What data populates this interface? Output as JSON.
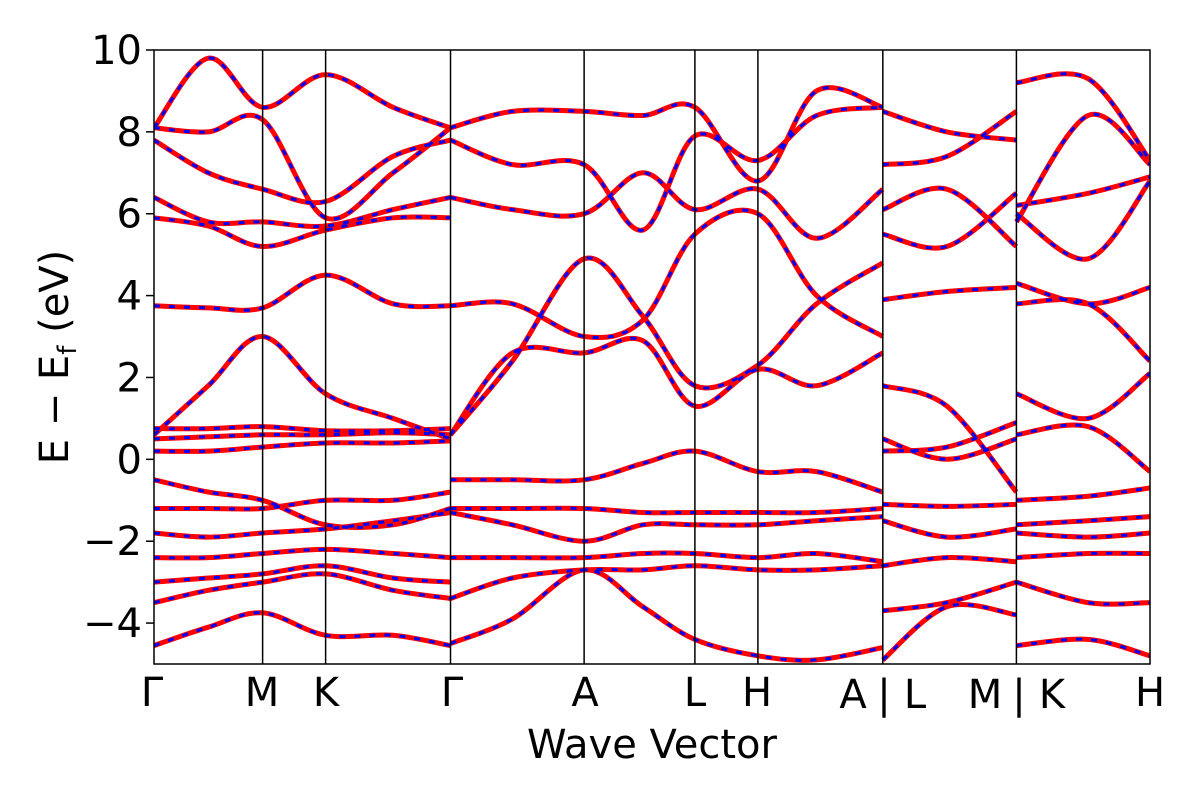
{
  "chart_data": {
    "type": "line",
    "title": "",
    "xlabel": "Wave Vector",
    "ylabel": "E − E_f (eV)",
    "ylabel_parts": {
      "main": "E − E",
      "sub": "f",
      "unit": " (eV)"
    },
    "ylim": [
      -5,
      10
    ],
    "yticks": [
      -4,
      -2,
      0,
      2,
      4,
      6,
      8,
      10
    ],
    "ytick_labels": [
      "−4",
      "−2",
      "0",
      "2",
      "4",
      "6",
      "8",
      "10"
    ],
    "kpath_labels": [
      "Γ",
      "M",
      "K",
      "Γ",
      "A",
      "L",
      "H",
      "A",
      "|",
      "L",
      "M",
      "|",
      "K",
      "H"
    ],
    "kpoints": [
      {
        "label": "Γ",
        "k": 0.0
      },
      {
        "label": "M",
        "k": 1.0
      },
      {
        "label": "K",
        "k": 1.58
      },
      {
        "label": "Γ",
        "k": 2.73
      },
      {
        "label": "A",
        "k": 3.96
      },
      {
        "label": "L",
        "k": 4.98
      },
      {
        "label": "H",
        "k": 5.56
      },
      {
        "label": "A|L",
        "k": 6.71
      },
      {
        "label": "M|K",
        "k": 7.94
      },
      {
        "label": "H",
        "k": 9.17
      }
    ],
    "xlim": [
      0,
      9.17
    ],
    "grid": false,
    "series": [
      {
        "color": "#ff0000",
        "style": "solid",
        "segments": [
          {
            "x": [
              0,
              0.5,
              1.0,
              1.58,
              2.2,
              2.73
            ],
            "y": [
              -4.55,
              -4.1,
              -3.75,
              -4.3,
              -4.3,
              -4.55
            ]
          },
          {
            "x": [
              0,
              0.5,
              1.0,
              1.58,
              2.2,
              2.73
            ],
            "y": [
              -3.5,
              -3.2,
              -3.0,
              -2.8,
              -3.2,
              -3.4
            ]
          },
          {
            "x": [
              0,
              0.5,
              1.0,
              1.58,
              2.2,
              2.73
            ],
            "y": [
              -3.0,
              -2.9,
              -2.8,
              -2.6,
              -2.9,
              -3.0
            ]
          },
          {
            "x": [
              0,
              0.5,
              1.0,
              1.58,
              2.2,
              2.73
            ],
            "y": [
              -2.4,
              -2.4,
              -2.3,
              -2.2,
              -2.3,
              -2.4
            ]
          },
          {
            "x": [
              0,
              0.5,
              1.0,
              1.58,
              2.2,
              2.73
            ],
            "y": [
              -1.8,
              -1.9,
              -1.8,
              -1.7,
              -1.5,
              -1.3
            ]
          },
          {
            "x": [
              0,
              0.5,
              1.0,
              1.58,
              2.2,
              2.73
            ],
            "y": [
              -1.2,
              -1.2,
              -1.2,
              -1.0,
              -1.0,
              -0.8
            ]
          },
          {
            "x": [
              0,
              0.5,
              1.0,
              1.58,
              2.2,
              2.73
            ],
            "y": [
              -0.5,
              -0.8,
              -1.0,
              -1.6,
              -1.6,
              -1.2
            ]
          },
          {
            "x": [
              0,
              0.5,
              1.0,
              1.58,
              2.2,
              2.73
            ],
            "y": [
              0.2,
              0.2,
              0.3,
              0.4,
              0.4,
              0.45
            ]
          },
          {
            "x": [
              0,
              0.5,
              1.0,
              1.58,
              2.2,
              2.73
            ],
            "y": [
              0.5,
              0.55,
              0.6,
              0.6,
              0.65,
              0.6
            ]
          },
          {
            "x": [
              0,
              0.5,
              1.0,
              1.58,
              2.2,
              2.73
            ],
            "y": [
              0.75,
              0.75,
              0.8,
              0.7,
              0.7,
              0.75
            ]
          },
          {
            "x": [
              0,
              0.5,
              1.0,
              1.58,
              2.2,
              2.73
            ],
            "y": [
              0.6,
              1.8,
              3.0,
              1.6,
              1.0,
              0.5
            ]
          },
          {
            "x": [
              0,
              0.5,
              1.0,
              1.58,
              2.2,
              2.73
            ],
            "y": [
              3.75,
              3.7,
              3.7,
              4.5,
              3.8,
              3.75
            ]
          },
          {
            "x": [
              0,
              0.5,
              1.0,
              1.58,
              2.2,
              2.73
            ],
            "y": [
              5.9,
              5.7,
              5.2,
              5.6,
              5.9,
              5.9
            ]
          },
          {
            "x": [
              0,
              0.5,
              1.0,
              1.58,
              2.2,
              2.73
            ],
            "y": [
              6.4,
              5.8,
              5.8,
              5.7,
              6.1,
              6.4
            ]
          },
          {
            "x": [
              0,
              0.5,
              1.0,
              1.58,
              2.2,
              2.73
            ],
            "y": [
              7.8,
              7.0,
              6.6,
              6.3,
              7.4,
              7.8
            ]
          },
          {
            "x": [
              0,
              0.5,
              1.0,
              1.58,
              2.2,
              2.73
            ],
            "y": [
              8.1,
              8.0,
              8.3,
              5.9,
              7.0,
              8.1
            ]
          },
          {
            "x": [
              0,
              0.5,
              1.0,
              1.58,
              2.2,
              2.73
            ],
            "y": [
              8.1,
              9.8,
              8.6,
              9.4,
              8.6,
              8.1
            ]
          },
          {
            "x": [
              2.73,
              3.3,
              3.96,
              4.5,
              4.98,
              5.56,
              6.1,
              6.71
            ],
            "y": [
              -0.5,
              -0.5,
              -0.5,
              -0.1,
              0.2,
              -0.3,
              -0.3,
              -0.8
            ]
          },
          {
            "x": [
              2.73,
              3.3,
              3.96,
              4.5,
              4.98,
              5.56,
              6.1,
              6.71
            ],
            "y": [
              -1.2,
              -1.2,
              -1.2,
              -1.3,
              -1.3,
              -1.3,
              -1.3,
              -1.2
            ]
          },
          {
            "x": [
              2.73,
              3.3,
              3.96,
              4.5,
              4.98,
              5.56,
              6.1,
              6.71
            ],
            "y": [
              -1.3,
              -1.6,
              -2.0,
              -1.6,
              -1.6,
              -1.6,
              -1.5,
              -1.4
            ]
          },
          {
            "x": [
              2.73,
              3.3,
              3.96,
              4.5,
              4.98,
              5.56,
              6.1,
              6.71
            ],
            "y": [
              -2.4,
              -2.4,
              -2.4,
              -2.3,
              -2.3,
              -2.4,
              -2.3,
              -2.5
            ]
          },
          {
            "x": [
              2.73,
              3.3,
              3.96,
              4.5,
              4.98,
              5.56,
              6.1,
              6.71
            ],
            "y": [
              -3.4,
              -2.9,
              -2.7,
              -2.7,
              -2.6,
              -2.7,
              -2.7,
              -2.6
            ]
          },
          {
            "x": [
              2.73,
              3.3,
              3.96,
              4.5,
              4.98,
              5.56,
              6.1,
              6.71
            ],
            "y": [
              -4.5,
              -3.9,
              -2.7,
              -3.6,
              -4.4,
              -4.8,
              -4.9,
              -4.6
            ]
          },
          {
            "x": [
              2.73,
              3.3,
              3.96,
              4.5,
              4.98,
              5.56,
              6.1,
              6.71
            ],
            "y": [
              0.6,
              2.4,
              4.9,
              3.5,
              1.8,
              2.3,
              3.8,
              4.8
            ]
          },
          {
            "x": [
              2.73,
              3.3,
              3.96,
              4.5,
              4.98,
              5.56,
              6.1,
              6.71
            ],
            "y": [
              0.6,
              2.6,
              2.6,
              2.9,
              1.3,
              2.2,
              1.8,
              2.6
            ]
          },
          {
            "x": [
              2.73,
              3.3,
              3.96,
              4.5,
              4.98,
              5.56,
              6.1,
              6.71
            ],
            "y": [
              3.75,
              3.8,
              3.0,
              3.4,
              5.5,
              6.0,
              4.0,
              3.0
            ]
          },
          {
            "x": [
              2.73,
              3.3,
              3.96,
              4.5,
              4.98,
              5.56,
              6.1,
              6.71
            ],
            "y": [
              6.4,
              6.1,
              6.0,
              7.0,
              6.1,
              6.6,
              5.4,
              6.6
            ]
          },
          {
            "x": [
              2.73,
              3.3,
              3.96,
              4.5,
              4.98,
              5.56,
              6.1,
              6.71
            ],
            "y": [
              7.8,
              7.2,
              7.2,
              5.6,
              7.9,
              7.3,
              8.4,
              8.6
            ]
          },
          {
            "x": [
              2.73,
              3.3,
              3.96,
              4.5,
              4.98,
              5.56,
              6.1,
              6.71
            ],
            "y": [
              8.1,
              8.5,
              8.5,
              8.4,
              8.6,
              6.8,
              9.0,
              8.6
            ]
          },
          {
            "x": [
              6.71,
              7.3,
              7.94
            ],
            "y": [
              -4.9,
              -3.6,
              -3.8
            ]
          },
          {
            "x": [
              6.71,
              7.3,
              7.94
            ],
            "y": [
              -3.7,
              -3.5,
              -3.0
            ]
          },
          {
            "x": [
              6.71,
              7.3,
              7.94
            ],
            "y": [
              -2.6,
              -2.4,
              -2.5
            ]
          },
          {
            "x": [
              6.71,
              7.3,
              7.94
            ],
            "y": [
              -1.5,
              -1.9,
              -1.7
            ]
          },
          {
            "x": [
              6.71,
              7.3,
              7.94
            ],
            "y": [
              -1.1,
              -1.15,
              -1.1
            ]
          },
          {
            "x": [
              6.71,
              7.3,
              7.94
            ],
            "y": [
              0.2,
              0.3,
              0.9
            ]
          },
          {
            "x": [
              6.71,
              7.3,
              7.94
            ],
            "y": [
              1.8,
              1.3,
              -0.8
            ]
          },
          {
            "x": [
              6.71,
              7.3,
              7.94
            ],
            "y": [
              0.5,
              0.0,
              0.5
            ]
          },
          {
            "x": [
              6.71,
              7.3,
              7.94
            ],
            "y": [
              3.9,
              4.1,
              4.2
            ]
          },
          {
            "x": [
              6.71,
              7.3,
              7.94
            ],
            "y": [
              5.5,
              5.2,
              6.5
            ]
          },
          {
            "x": [
              6.71,
              7.3,
              7.94
            ],
            "y": [
              6.1,
              6.6,
              5.2
            ]
          },
          {
            "x": [
              6.71,
              7.3,
              7.94
            ],
            "y": [
              7.2,
              7.4,
              8.5
            ]
          },
          {
            "x": [
              6.71,
              7.3,
              7.94
            ],
            "y": [
              8.5,
              8.0,
              7.8
            ]
          },
          {
            "x": [
              7.94,
              8.6,
              9.17
            ],
            "y": [
              -4.55,
              -4.4,
              -4.8
            ]
          },
          {
            "x": [
              7.94,
              8.6,
              9.17
            ],
            "y": [
              -3.0,
              -3.5,
              -3.5
            ]
          },
          {
            "x": [
              7.94,
              8.6,
              9.17
            ],
            "y": [
              -2.4,
              -2.3,
              -2.3
            ]
          },
          {
            "x": [
              7.94,
              8.6,
              9.17
            ],
            "y": [
              -1.8,
              -1.9,
              -1.8
            ]
          },
          {
            "x": [
              7.94,
              8.6,
              9.17
            ],
            "y": [
              -1.6,
              -1.5,
              -1.4
            ]
          },
          {
            "x": [
              7.94,
              8.6,
              9.17
            ],
            "y": [
              -1.0,
              -0.9,
              -0.7
            ]
          },
          {
            "x": [
              7.94,
              8.6,
              9.17
            ],
            "y": [
              0.6,
              0.8,
              -0.3
            ]
          },
          {
            "x": [
              7.94,
              8.6,
              9.17
            ],
            "y": [
              1.6,
              1.0,
              2.1
            ]
          },
          {
            "x": [
              7.94,
              8.6,
              9.17
            ],
            "y": [
              4.3,
              3.8,
              4.2
            ]
          },
          {
            "x": [
              7.94,
              8.6,
              9.17
            ],
            "y": [
              3.8,
              3.8,
              2.4
            ]
          },
          {
            "x": [
              7.94,
              8.6,
              9.17
            ],
            "y": [
              6.0,
              4.9,
              6.8
            ]
          },
          {
            "x": [
              7.94,
              8.6,
              9.17
            ],
            "y": [
              6.2,
              6.5,
              6.9
            ]
          },
          {
            "x": [
              7.94,
              8.6,
              9.17
            ],
            "y": [
              9.2,
              9.3,
              7.3
            ]
          },
          {
            "x": [
              7.94,
              8.6,
              9.17
            ],
            "y": [
              5.8,
              8.4,
              7.2
            ]
          }
        ]
      },
      {
        "color": "#0000ff",
        "style": "dashed",
        "same_as": 0
      }
    ]
  }
}
